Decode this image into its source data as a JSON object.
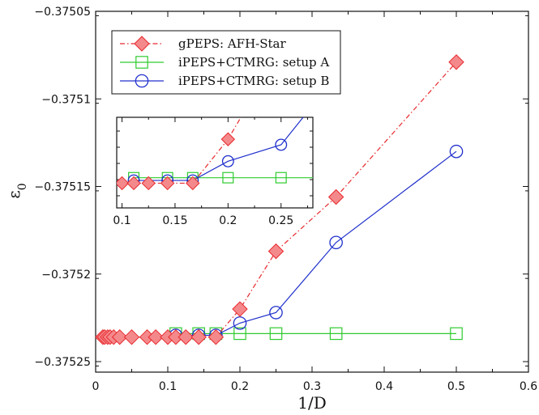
{
  "chart_data": {
    "type": "line",
    "xlabel": "1/D",
    "ylabel": "ε",
    "ylabel_sub": "0",
    "xlim": [
      0,
      0.6
    ],
    "ylim": [
      -0.375256,
      -0.37505
    ],
    "x_ticks": [
      "0",
      "0.1",
      "0.2",
      "0.3",
      "0.4",
      "0.5",
      "0.6"
    ],
    "y_ticks": [
      "-0.37505",
      "-0.3751",
      "-0.37515",
      "-0.3752",
      "-0.37525"
    ],
    "legend_position": "top-left",
    "series": [
      {
        "name": "gPEPS: AFH-Star",
        "color": "#e8282d",
        "fill": "#f4898b",
        "marker": "diamond",
        "dash": "dash-dot",
        "x": [
          0.01,
          0.0125,
          0.0167,
          0.02,
          0.025,
          0.0333,
          0.05,
          0.0714,
          0.0833,
          0.1,
          0.1111,
          0.125,
          0.1429,
          0.1667,
          0.2,
          0.25,
          0.3333,
          0.5
        ],
        "y": [
          -0.375236,
          -0.375236,
          -0.375236,
          -0.375236,
          -0.375236,
          -0.375236,
          -0.375236,
          -0.375236,
          -0.375236,
          -0.375236,
          -0.375236,
          -0.375236,
          -0.375236,
          -0.375236,
          -0.37522,
          -0.375187,
          -0.375156,
          -0.375079
        ]
      },
      {
        "name": "iPEPS+CTMRG: setup A",
        "color": "#2fcb2f",
        "fill": "none",
        "marker": "square",
        "dash": "solid",
        "x": [
          0.1111,
          0.1429,
          0.1667,
          0.2,
          0.25,
          0.3333,
          0.5
        ],
        "y": [
          -0.375234,
          -0.375234,
          -0.375234,
          -0.375234,
          -0.375234,
          -0.375234,
          -0.375234
        ]
      },
      {
        "name": "iPEPS+CTMRG: setup B",
        "color": "#2030cc",
        "fill": "none",
        "marker": "circle",
        "dash": "solid",
        "x": [
          0.1111,
          0.1429,
          0.1667,
          0.2,
          0.25,
          0.3333,
          0.5
        ],
        "y": [
          -0.375235,
          -0.375235,
          -0.375235,
          -0.375228,
          -0.375222,
          -0.375182,
          -0.37513
        ]
      }
    ],
    "inset": {
      "xlim": [
        0.095,
        0.28
      ],
      "x_ticks": [
        "0.1",
        "0.15",
        "0.2",
        "0.25"
      ]
    }
  }
}
